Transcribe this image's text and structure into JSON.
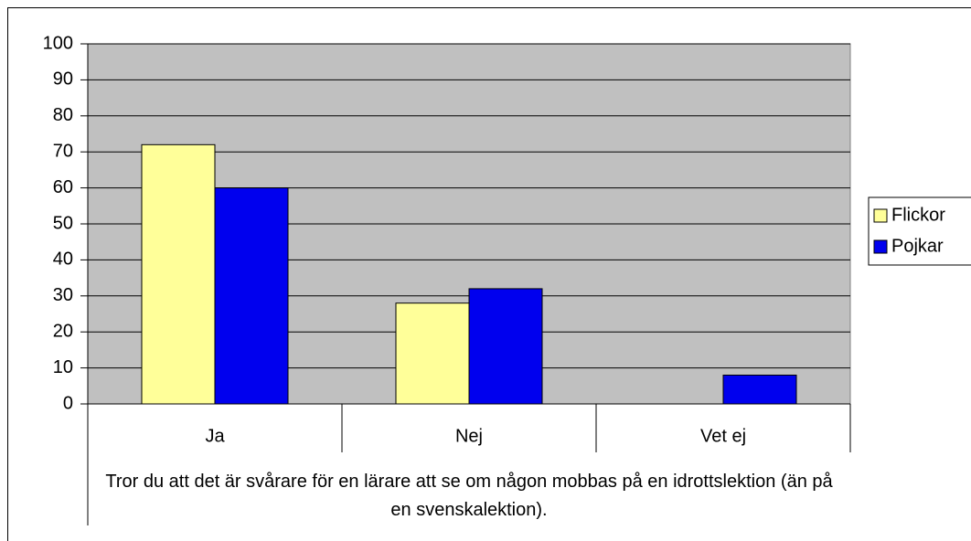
{
  "chart_data": {
    "type": "bar",
    "xlabel": "Tror du att det är svårare för en lärare att se om någon mobbas på en idrottslektion (än på en svenskalektion).",
    "categories": [
      "Ja",
      "Nej",
      "Vet ej"
    ],
    "series": [
      {
        "name": "Flickor",
        "color": "#ffff99",
        "values": [
          72,
          28,
          0
        ]
      },
      {
        "name": "Pojkar",
        "color": "#0000ee",
        "values": [
          60,
          32,
          8
        ]
      }
    ],
    "ylim": [
      0,
      100
    ],
    "yticks": [
      0,
      10,
      20,
      30,
      40,
      50,
      60,
      70,
      80,
      90,
      100
    ],
    "grid": true,
    "legend": "right",
    "background": "#c0c0c0"
  }
}
